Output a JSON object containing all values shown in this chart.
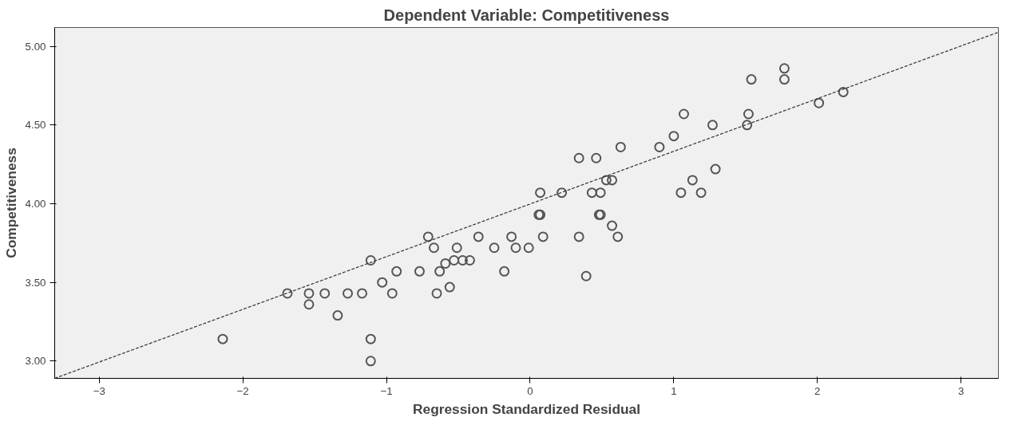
{
  "chart_data": {
    "type": "scatter",
    "title": "Dependent Variable: Competitiveness",
    "xlabel": "Regression Standardized Residual",
    "ylabel": "Competitiveness",
    "xlim": [
      -3.31,
      3.26
    ],
    "ylim": [
      2.89,
      5.12
    ],
    "xticks": [
      -3,
      -2,
      -1,
      0,
      1,
      2,
      3
    ],
    "yticks": [
      {
        "value": 3,
        "label": "3.00"
      },
      {
        "value": 3.5,
        "label": "3.50"
      },
      {
        "value": 4,
        "label": "4.00"
      },
      {
        "value": 4.5,
        "label": "4.50"
      },
      {
        "value": 5,
        "label": "5.00"
      }
    ],
    "grid": false,
    "marker": "circle",
    "series": [
      {
        "color": "#555555",
        "x": [
          -2.14,
          -1.69,
          -1.54,
          -1.43,
          -1.27,
          -1.17,
          -1.54,
          -1.34,
          -1.11,
          -1.11,
          -1.11,
          -1.03,
          -0.96,
          -0.93,
          -0.77,
          -0.63,
          -0.71,
          -0.67,
          -0.51,
          -0.36,
          -0.25,
          -0.13,
          -0.1,
          -0.01,
          -0.59,
          -0.53,
          -0.47,
          -0.42,
          -0.65,
          -0.56,
          -0.18,
          0.09,
          0.07,
          0.34,
          0.39,
          0.48,
          0.57,
          0.61,
          0.06,
          0.49,
          0.07,
          0.22,
          0.43,
          0.49,
          1.05,
          1.19,
          0.53,
          0.57,
          1.13,
          1.29,
          0.34,
          0.46,
          0.63,
          0.9,
          1.0,
          1.27,
          1.51,
          1.07,
          1.52,
          2.01,
          2.18,
          1.54,
          1.77,
          1.77
        ],
        "values": [
          3.14,
          3.43,
          3.43,
          3.43,
          3.43,
          3.43,
          3.36,
          3.29,
          3.64,
          3.14,
          3.0,
          3.5,
          3.43,
          3.57,
          3.57,
          3.57,
          3.79,
          3.72,
          3.72,
          3.79,
          3.72,
          3.79,
          3.72,
          3.72,
          3.62,
          3.64,
          3.64,
          3.64,
          3.43,
          3.47,
          3.57,
          3.79,
          3.93,
          3.79,
          3.54,
          3.93,
          3.86,
          3.79,
          3.93,
          3.93,
          4.07,
          4.07,
          4.07,
          4.07,
          4.07,
          4.07,
          4.15,
          4.15,
          4.15,
          4.22,
          4.29,
          4.29,
          4.36,
          4.36,
          4.43,
          4.5,
          4.5,
          4.57,
          4.57,
          4.64,
          4.71,
          4.79,
          4.79,
          4.86
        ]
      },
      {
        "type": "line",
        "color": "#333333",
        "line_style": "dashed",
        "marker": "none",
        "x": [
          -3.31,
          3.26
        ],
        "values": [
          2.89,
          5.09
        ]
      }
    ]
  }
}
